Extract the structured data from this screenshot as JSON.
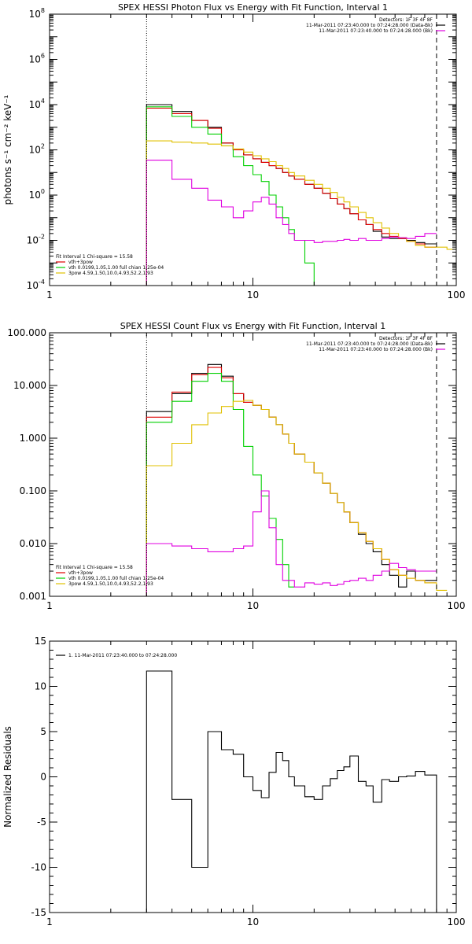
{
  "chart_data": [
    {
      "type": "line",
      "title": "SPEX HESSI Photon Flux vs Energy with Fit Function, Interval 1",
      "ylabel": "photons s⁻¹ cm⁻² keV⁻¹",
      "xscale": "log",
      "yscale": "log",
      "xlim": [
        1,
        100
      ],
      "ylim": [
        0.0001,
        100000000
      ],
      "x_ticks": [
        1,
        10,
        100
      ],
      "x_tick_labels": [
        "1",
        "10",
        "100"
      ],
      "y_ticks": [
        0.0001,
        0.01,
        1,
        100,
        10000,
        1000000,
        100000000
      ],
      "y_tick_labels": [
        {
          "base": "10",
          "exp": "-4"
        },
        {
          "base": "10",
          "exp": "-2"
        },
        {
          "base": "10",
          "exp": "0"
        },
        {
          "base": "10",
          "exp": "2"
        },
        {
          "base": "10",
          "exp": "4"
        },
        {
          "base": "10",
          "exp": "6"
        },
        {
          "base": "10",
          "exp": "8"
        }
      ],
      "vlines": [
        {
          "x": 3.0,
          "style": "dotted"
        },
        {
          "x": 80.0,
          "style": "dashed"
        }
      ],
      "legend_right": {
        "lines": [
          {
            "text": "Detectors: 1F 3F 4F 8F",
            "color": ""
          },
          {
            "text": "11-Mar-2011 07:23:40.000 to 07:24:28.000 (Data-Bk)",
            "color": "#000000"
          },
          {
            "text": "11-Mar-2011 07:23:40.000 to 07:24:28.000 (Bk)",
            "color": "#e000e0"
          }
        ]
      },
      "legend_left": {
        "lines": [
          {
            "text": "Fit Interval 1    Chi-square = 15.58",
            "color": ""
          },
          {
            "text": "vth+3pow",
            "color": "#e00000"
          },
          {
            "text": "vth 0.0199,1.05,1.00  full chian 1.25e-04",
            "color": "#00d000"
          },
          {
            "text": "3pow 4.59,1.50,10.0,4.93,52.2,1.93",
            "color": "#e0c000"
          }
        ]
      },
      "series": [
        {
          "color": "#000000",
          "edges": [
            3.0,
            4.0,
            5.0,
            6.0,
            7.0,
            8.0,
            9.0,
            10.0,
            11.0,
            12.0,
            13.0,
            14.0,
            15.0,
            16.0,
            18.0,
            20.0,
            22.0,
            24.0,
            26.0,
            28.0,
            30.0,
            33.0,
            36.0,
            39.0,
            43.0,
            47.0,
            52.0,
            57.0,
            63.0,
            70.0,
            80.0
          ],
          "values": [
            10000,
            5000,
            2000,
            1000,
            200,
            100,
            60,
            40,
            28,
            20,
            15,
            10,
            7,
            5,
            3,
            2,
            1.2,
            0.7,
            0.4,
            0.25,
            0.15,
            0.08,
            0.05,
            0.025,
            0.014,
            0.012,
            0.012,
            0.01,
            0.008,
            0.007
          ]
        },
        {
          "color": "#e00000",
          "edges": [
            3.0,
            4.0,
            5.0,
            6.0,
            7.0,
            8.0,
            9.0,
            10.0,
            11.0,
            12.0,
            13.0,
            14.0,
            15.0,
            16.0,
            18.0,
            20.0,
            22.0,
            24.0,
            26.0,
            28.0,
            30.0,
            33.0,
            36.0,
            39.0,
            43.0,
            47.0,
            52.0,
            57.0,
            63.0,
            70.0,
            80.0
          ],
          "values": [
            7000,
            4000,
            2000,
            900,
            200,
            100,
            60,
            40,
            28,
            20,
            15,
            10,
            7,
            5,
            3,
            2,
            1.2,
            0.7,
            0.4,
            0.25,
            0.15,
            0.08,
            0.05,
            0.03,
            0.02,
            0.015,
            0.012,
            0.009,
            0.007,
            0.005
          ]
        },
        {
          "color": "#00d000",
          "edges": [
            3.0,
            4.0,
            5.0,
            6.0,
            7.0,
            8.0,
            9.0,
            10.0,
            11.0,
            12.0,
            13.0,
            14.0,
            15.0,
            16.0,
            18.0,
            20.0,
            22.0
          ],
          "values": [
            8000,
            3000,
            1000,
            500,
            150,
            50,
            20,
            8,
            4,
            1,
            0.3,
            0.1,
            0.03,
            0.01,
            0.001,
            0.0001
          ]
        },
        {
          "color": "#e0c000",
          "edges": [
            3.0,
            4.0,
            5.0,
            6.0,
            7.0,
            8.0,
            9.0,
            10.0,
            11.0,
            12.0,
            13.0,
            14.0,
            15.0,
            16.0,
            18.0,
            20.0,
            22.0,
            24.0,
            26.0,
            28.0,
            30.0,
            33.0,
            36.0,
            39.0,
            43.0,
            47.0,
            52.0,
            57.0,
            63.0,
            70.0,
            80.0,
            90.0,
            100.0
          ],
          "values": [
            250,
            220,
            200,
            180,
            150,
            110,
            80,
            55,
            40,
            30,
            20,
            15,
            10,
            7,
            4.5,
            3,
            2,
            1.3,
            0.8,
            0.5,
            0.3,
            0.17,
            0.1,
            0.06,
            0.035,
            0.02,
            0.013,
            0.009,
            0.006,
            0.005,
            0.005,
            0.004
          ]
        },
        {
          "color": "#e000e0",
          "edges": [
            3.0,
            4.0,
            5.0,
            6.0,
            7.0,
            8.0,
            9.0,
            10.0,
            11.0,
            12.0,
            13.0,
            14.0,
            15.0,
            16.0,
            18.0,
            20.0,
            22.0,
            24.0,
            26.0,
            28.0,
            30.0,
            33.0,
            36.0,
            39.0,
            43.0,
            47.0,
            52.0,
            57.0,
            63.0,
            70.0,
            80.0
          ],
          "values": [
            35,
            5,
            2,
            0.6,
            0.3,
            0.1,
            0.2,
            0.5,
            0.8,
            0.4,
            0.1,
            0.05,
            0.02,
            0.01,
            0.01,
            0.008,
            0.009,
            0.009,
            0.01,
            0.011,
            0.01,
            0.012,
            0.01,
            0.01,
            0.012,
            0.014,
            0.013,
            0.012,
            0.015,
            0.02
          ]
        }
      ]
    },
    {
      "type": "line",
      "title": "SPEX HESSI Count Flux vs Energy with Fit Function, Interval 1",
      "ylabel": "",
      "xscale": "log",
      "yscale": "log",
      "xlim": [
        1,
        100
      ],
      "ylim": [
        0.001,
        100
      ],
      "x_ticks": [
        1,
        10,
        100
      ],
      "x_tick_labels": [
        "1",
        "10",
        "100"
      ],
      "y_ticks": [
        0.001,
        0.01,
        0.1,
        1,
        10,
        100
      ],
      "y_tick_labels": [
        "0.001",
        "0.010",
        "0.100",
        "1.000",
        "10.000",
        "100.000"
      ],
      "vlines": [
        {
          "x": 3.0,
          "style": "dotted"
        },
        {
          "x": 80.0,
          "style": "dashed"
        }
      ],
      "legend_right": {
        "lines": [
          {
            "text": "Detectors: 1F 3F 4F 8F",
            "color": ""
          },
          {
            "text": "11-Mar-2011 07:23:40.000 to 07:24:28.000 (Data-Bk)",
            "color": "#000000"
          },
          {
            "text": "11-Mar-2011 07:23:40.000 to 07:24:28.000 (Bk)",
            "color": "#e000e0"
          }
        ]
      },
      "legend_left": {
        "lines": [
          {
            "text": "Fit Interval 1    Chi-square = 15.58",
            "color": ""
          },
          {
            "text": "vth+3pow",
            "color": "#e00000"
          },
          {
            "text": "vth 0.0199,1.05,1.00  full chian 1.25e-04",
            "color": "#00d000"
          },
          {
            "text": "3pow 4.59,1.50,10.0,4.93,52.2,1.93",
            "color": "#e0c000"
          }
        ]
      },
      "series": [
        {
          "color": "#000000",
          "edges": [
            3.0,
            4.0,
            5.0,
            6.0,
            7.0,
            8.0,
            9.0,
            10.0,
            11.0,
            12.0,
            13.0,
            14.0,
            15.0,
            16.0,
            18.0,
            20.0,
            22.0,
            24.0,
            26.0,
            28.0,
            30.0,
            33.0,
            36.0,
            39.0,
            43.0,
            47.0,
            52.0,
            57.0,
            63.0,
            70.0,
            80.0
          ],
          "values": [
            3.2,
            7,
            17,
            25,
            15,
            7,
            4.8,
            4.2,
            3.5,
            2.5,
            1.8,
            1.2,
            0.8,
            0.5,
            0.35,
            0.22,
            0.14,
            0.09,
            0.06,
            0.04,
            0.025,
            0.015,
            0.01,
            0.007,
            0.004,
            0.0025,
            0.0015,
            0.003,
            0.002,
            0.002
          ]
        },
        {
          "color": "#e00000",
          "edges": [
            3.0,
            4.0,
            5.0,
            6.0,
            7.0,
            8.0,
            9.0,
            10.0,
            11.0,
            12.0,
            13.0,
            14.0,
            15.0,
            16.0,
            18.0,
            20.0,
            22.0,
            24.0,
            26.0,
            28.0,
            30.0,
            33.0,
            36.0,
            39.0,
            43.0,
            47.0,
            52.0,
            57.0,
            63.0,
            70.0,
            80.0
          ],
          "values": [
            2.5,
            7.5,
            16,
            22,
            14,
            7,
            4.8,
            4.2,
            3.5,
            2.5,
            1.8,
            1.2,
            0.8,
            0.5,
            0.35,
            0.22,
            0.14,
            0.09,
            0.06,
            0.04,
            0.025,
            0.016,
            0.011,
            0.008,
            0.005,
            0.0032,
            0.0025,
            0.0022,
            0.002,
            0.0018
          ]
        },
        {
          "color": "#00d000",
          "edges": [
            3.0,
            4.0,
            5.0,
            6.0,
            7.0,
            8.0,
            9.0,
            10.0,
            11.0,
            12.0,
            13.0,
            14.0,
            15.0,
            16.0
          ],
          "values": [
            2,
            5,
            12,
            17,
            12,
            3.5,
            0.7,
            0.2,
            0.08,
            0.03,
            0.012,
            0.004,
            0.0015
          ]
        },
        {
          "color": "#e0c000",
          "edges": [
            3.0,
            4.0,
            5.0,
            6.0,
            7.0,
            8.0,
            9.0,
            10.0,
            11.0,
            12.0,
            13.0,
            14.0,
            15.0,
            16.0,
            18.0,
            20.0,
            22.0,
            24.0,
            26.0,
            28.0,
            30.0,
            33.0,
            36.0,
            39.0,
            43.0,
            47.0,
            52.0,
            57.0,
            63.0,
            70.0,
            80.0,
            90.0
          ],
          "values": [
            0.3,
            0.8,
            1.8,
            3,
            4,
            5,
            5.2,
            4.2,
            3.5,
            2.5,
            1.8,
            1.2,
            0.8,
            0.5,
            0.35,
            0.22,
            0.14,
            0.09,
            0.06,
            0.04,
            0.025,
            0.016,
            0.011,
            0.008,
            0.005,
            0.0032,
            0.0025,
            0.0022,
            0.002,
            0.0018,
            0.0013
          ]
        },
        {
          "color": "#e000e0",
          "edges": [
            3.0,
            4.0,
            5.0,
            6.0,
            7.0,
            8.0,
            9.0,
            10.0,
            11.0,
            12.0,
            13.0,
            14.0,
            15.0,
            16.0,
            18.0,
            20.0,
            22.0,
            24.0,
            26.0,
            28.0,
            30.0,
            33.0,
            36.0,
            39.0,
            43.0,
            47.0,
            52.0,
            57.0,
            63.0,
            70.0,
            80.0
          ],
          "values": [
            0.01,
            0.009,
            0.008,
            0.007,
            0.007,
            0.008,
            0.009,
            0.04,
            0.1,
            0.02,
            0.004,
            0.002,
            0.002,
            0.0015,
            0.0018,
            0.0017,
            0.0018,
            0.0016,
            0.0017,
            0.0019,
            0.002,
            0.0022,
            0.002,
            0.0025,
            0.003,
            0.0042,
            0.0035,
            0.0032,
            0.003,
            0.003
          ]
        }
      ]
    },
    {
      "type": "line",
      "title": "",
      "ylabel": "Normalized Residuals",
      "xscale": "log",
      "yscale": "linear",
      "xlim": [
        1,
        100
      ],
      "ylim": [
        -15,
        15
      ],
      "x_ticks": [
        1,
        10,
        100
      ],
      "x_tick_labels": [
        "1",
        "10",
        "100"
      ],
      "y_ticks": [
        -15,
        -10,
        -5,
        0,
        5,
        10,
        15
      ],
      "y_tick_labels": [
        "-15",
        "-10",
        "-5",
        "0",
        "5",
        "10",
        "15"
      ],
      "legend_left": {
        "lines": [
          {
            "text": "1. 11-Mar-2011 07:23:40.000 to 07:24:28.000",
            "color": "#000000"
          }
        ]
      },
      "series": [
        {
          "color": "#000000",
          "edges": [
            3.0,
            4.0,
            5.0,
            6.0,
            7.0,
            8.0,
            9.0,
            10.0,
            11.0,
            12.0,
            13.0,
            14.0,
            15.0,
            16.0,
            18.0,
            20.0,
            22.0,
            24.0,
            26.0,
            28.0,
            30.0,
            33.0,
            36.0,
            39.0,
            43.0,
            47.0,
            52.0,
            57.0,
            63.0,
            70.0,
            80.0
          ],
          "values": [
            11.7,
            -2.5,
            -10,
            5,
            3,
            2.5,
            0,
            -1.5,
            -2.3,
            0.5,
            2.7,
            1.8,
            0,
            -1,
            -2.2,
            -2.5,
            -1,
            -0.2,
            0.7,
            1.1,
            2.3,
            -0.5,
            -1,
            -2.8,
            -0.3,
            -0.5,
            0,
            0.1,
            0.6,
            0.2
          ]
        }
      ]
    }
  ]
}
